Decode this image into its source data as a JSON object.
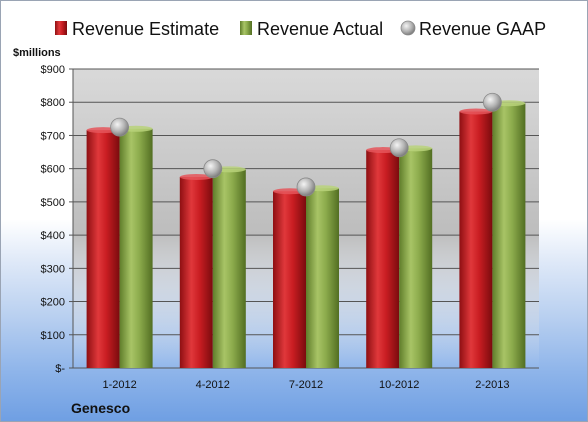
{
  "chart_data": {
    "type": "bar",
    "title": "",
    "unit_label": "$millions",
    "company": "Genesco",
    "categories": [
      "1-2012",
      "4-2012",
      "7-2012",
      "10-2012",
      "2-2013"
    ],
    "series": [
      {
        "name": "Revenue Estimate",
        "kind": "bar",
        "color": "#cc1f24",
        "values": [
          716,
          575,
          532,
          656,
          772
        ]
      },
      {
        "name": "Revenue Actual",
        "kind": "bar",
        "color": "#8cab4c",
        "values": [
          720,
          598,
          541,
          661,
          797
        ]
      },
      {
        "name": "Revenue GAAP",
        "kind": "marker",
        "color": "#a9a9a9",
        "values": [
          725,
          600,
          545,
          663,
          800
        ]
      }
    ],
    "ylim": [
      0,
      900
    ],
    "yticks": [
      "$-",
      "$100",
      "$200",
      "$300",
      "$400",
      "$500",
      "$600",
      "$700",
      "$800",
      "$900"
    ],
    "grid": true,
    "legend_position": "top"
  }
}
